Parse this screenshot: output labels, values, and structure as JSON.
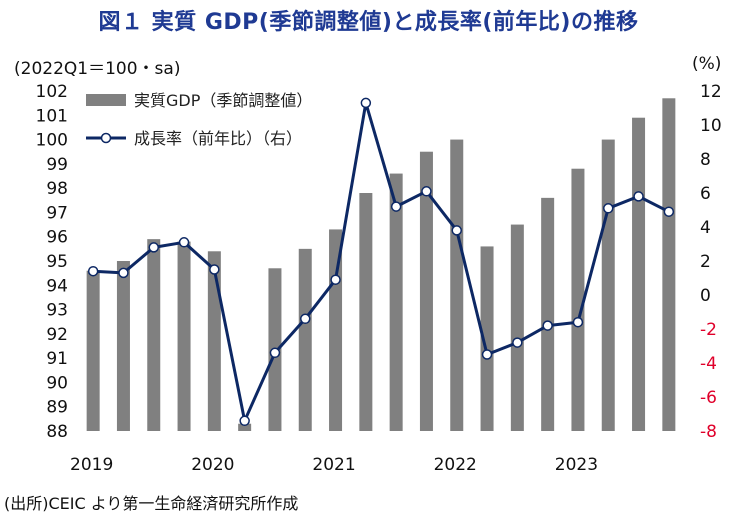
{
  "title": "図１ 実質 GDP(季節調整値)と成長率(前年比)の推移",
  "unit_left": "(2022Q1＝100・sa)",
  "unit_right": "(%)",
  "source": "(出所)CEIC より第一生命経済研究所作成",
  "colors": {
    "bar": "#808080",
    "line": "#0d2864",
    "marker_fill": "#ffffff",
    "negative_tick": "#e0002a",
    "title": "#1f3a93"
  },
  "chart_data": {
    "type": "bar+line",
    "title": "図１ 実質 GDP(季節調整値)と成長率(前年比)の推移",
    "quarters": [
      "2019Q1",
      "2019Q2",
      "2019Q3",
      "2019Q4",
      "2020Q1",
      "2020Q2",
      "2020Q3",
      "2020Q4",
      "2021Q1",
      "2021Q2",
      "2021Q3",
      "2021Q4",
      "2022Q1",
      "2022Q2",
      "2022Q3",
      "2022Q4",
      "2023Q1",
      "2023Q2",
      "2023Q3",
      "2023Q4"
    ],
    "x_tick_labels": [
      "2019",
      "2020",
      "2021",
      "2022",
      "2023"
    ],
    "series": [
      {
        "name": "実質GDP（季節調整値）",
        "type": "bar",
        "axis": "left",
        "values": [
          94.6,
          95.0,
          95.9,
          95.8,
          95.4,
          88.3,
          94.7,
          95.5,
          96.3,
          97.8,
          98.6,
          99.5,
          100.0,
          95.6,
          96.5,
          97.6,
          98.8,
          100.0,
          100.9,
          101.7
        ]
      },
      {
        "name": "成長率（前年比）（右）",
        "type": "line",
        "axis": "right",
        "values": [
          1.4,
          1.3,
          2.8,
          3.1,
          1.5,
          -7.4,
          -3.4,
          -1.4,
          0.9,
          11.3,
          5.2,
          6.1,
          3.8,
          -3.5,
          -2.8,
          -1.8,
          -1.6,
          5.1,
          5.8,
          4.9
        ]
      }
    ],
    "ylim_left": [
      88,
      102
    ],
    "ylim_right": [
      -8,
      12
    ],
    "left_ticks": [
      "88",
      "89",
      "90",
      "91",
      "92",
      "93",
      "94",
      "95",
      "96",
      "97",
      "98",
      "99",
      "100",
      "101",
      "102"
    ],
    "right_ticks": [
      "12",
      "10",
      "8",
      "6",
      "4",
      "2",
      "0",
      "-2",
      "-4",
      "-6",
      "-8"
    ],
    "legend": [
      "実質GDP（季節調整値）",
      "成長率（前年比）（右）"
    ],
    "legend_position": "top-left"
  }
}
